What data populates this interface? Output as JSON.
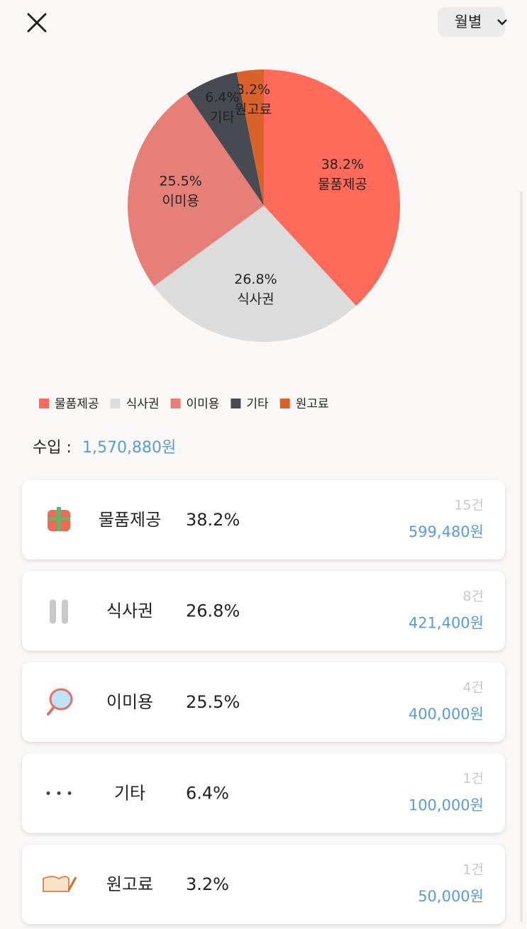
{
  "header": {
    "period": "월별"
  },
  "chart_data": {
    "type": "pie",
    "categories": [
      "물품제공",
      "식사권",
      "이미용",
      "기타",
      "원고료"
    ],
    "values": [
      38.2,
      26.8,
      25.5,
      6.4,
      3.2
    ],
    "value_labels": [
      "38.2%",
      "26.8%",
      "25.5%",
      "6.4%",
      "3.2%"
    ],
    "colors": [
      "#ff6b5b",
      "#dcdcdc",
      "#e57f78",
      "#474a51",
      "#d9622b"
    ],
    "legend": "bottom-left"
  },
  "summary": {
    "label": "수입 :",
    "amount": "1,570,880원"
  },
  "list": [
    {
      "name": "물품제공",
      "percent": "38.2%",
      "count": "15건",
      "amount": "599,480원"
    },
    {
      "name": "식사권",
      "percent": "26.8%",
      "count": "8건",
      "amount": "421,400원"
    },
    {
      "name": "이미용",
      "percent": "25.5%",
      "count": "4건",
      "amount": "400,000원"
    },
    {
      "name": "기타",
      "percent": "6.4%",
      "count": "1건",
      "amount": "100,000원"
    },
    {
      "name": "원고료",
      "percent": "3.2%",
      "count": "1건",
      "amount": "50,000원"
    }
  ]
}
